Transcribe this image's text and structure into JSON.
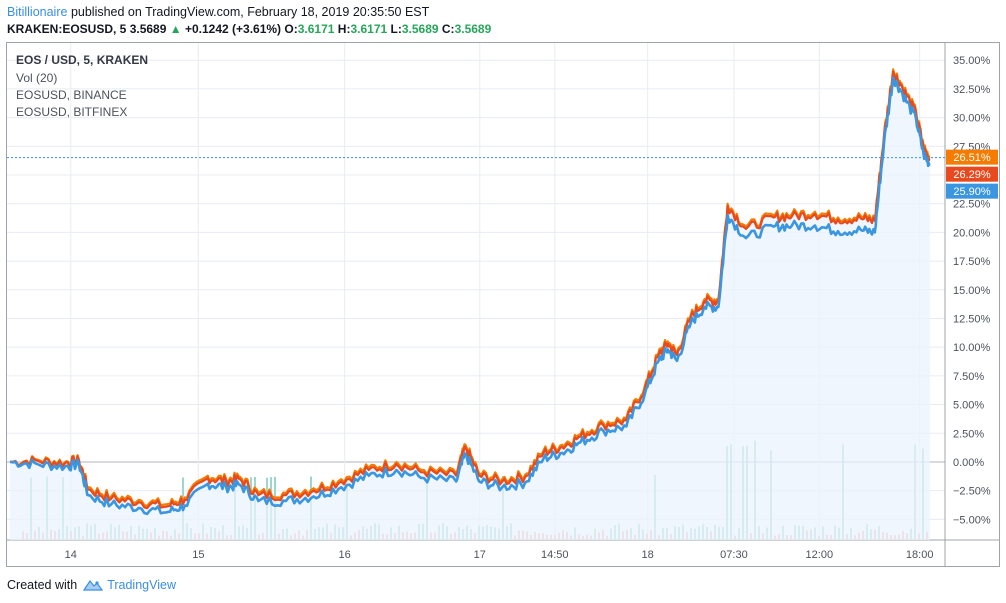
{
  "header": {
    "author": "Bitillionaire",
    "published": "published on TradingView.com, February 18, 2019 20:35:50 EST",
    "symbol": "KRAKEN:EOSUSD, 5",
    "last": "3.5689",
    "arrow": "▲",
    "change": "+0.1242 (+3.61%)",
    "o_label": "O:",
    "o_val": "3.6171",
    "h_label": "H:",
    "h_val": "3.6171",
    "l_label": "L:",
    "l_val": "3.5689",
    "c_label": "C:",
    "c_val": "3.5689"
  },
  "legend": {
    "main": "EOS / USD, 5, KRAKEN",
    "vol": "Vol (20)",
    "s2": "EOSUSD, BINANCE",
    "s3": "EOSUSD, BITFINEX"
  },
  "footer": {
    "created_with": "Created with",
    "brand": "TradingView"
  },
  "colors": {
    "kraken": "#f57c00",
    "binance": "#e8491e",
    "bitfinex": "#3a96e0",
    "area_fill": "#e9f3fc",
    "grid": "#e8ecf2",
    "vol_up": "#8ccfc5",
    "vol_down": "#f2a5a8",
    "zero_line": "#b2b5be",
    "last_line": "#3a96e0"
  },
  "chart_data": {
    "type": "line",
    "title": "EOS / USD, 5, KRAKEN",
    "y_unit": "%",
    "ylim": [
      -6.8,
      36.5
    ],
    "y_ticks": [
      -5,
      -2.5,
      0,
      2.5,
      5,
      7.5,
      10,
      12.5,
      15,
      17.5,
      20,
      22.5,
      25,
      27.5,
      30,
      32.5,
      35
    ],
    "y_tick_labels": [
      "−5.00%",
      "−2.50%",
      "0.00%",
      "2.50%",
      "5.00%",
      "7.50%",
      "10.00%",
      "12.50%",
      "15.00%",
      "17.50%",
      "20.00%",
      "22.50%",
      "25.00%",
      "27.50%",
      "30.00%",
      "32.50%",
      "35.00%"
    ],
    "x_ticks": [
      "14",
      "15",
      "16",
      "17",
      "14:50",
      "18",
      "07:30",
      "12:00",
      "18:00"
    ],
    "x_tick_pos": [
      0.068,
      0.204,
      0.36,
      0.504,
      0.584,
      0.683,
      0.775,
      0.866,
      0.973
    ],
    "grid": true,
    "legend_position": "top-left",
    "last_labels": [
      {
        "series": "KRAKEN",
        "text": "26.51%",
        "value": 26.51
      },
      {
        "series": "BINANCE",
        "text": "26.29%",
        "value": 26.29
      },
      {
        "series": "BITFINEX",
        "text": "25.90%",
        "value": 25.9
      }
    ],
    "x": [
      0,
      0.03,
      0.06,
      0.075,
      0.085,
      0.11,
      0.14,
      0.17,
      0.19,
      0.215,
      0.235,
      0.25,
      0.27,
      0.3,
      0.33,
      0.36,
      0.39,
      0.42,
      0.45,
      0.485,
      0.495,
      0.51,
      0.535,
      0.56,
      0.58,
      0.6,
      0.62,
      0.645,
      0.67,
      0.69,
      0.705,
      0.715,
      0.725,
      0.74,
      0.755,
      0.77,
      0.78,
      0.8,
      0.83,
      0.85,
      0.875,
      0.9,
      0.925,
      0.94,
      0.95,
      0.96,
      0.97,
      0.985,
      0.993,
      1.0
    ],
    "series": [
      {
        "name": "KRAKEN",
        "values": [
          0,
          0.2,
          0,
          0.2,
          -2.2,
          -3,
          -3.3,
          -3.7,
          -3.1,
          -1.2,
          -1.5,
          -1.3,
          -2.7,
          -2.7,
          -2.3,
          -1.5,
          -0.5,
          0,
          -0.7,
          -1,
          1.5,
          -1,
          -1.5,
          -1.1,
          1,
          1.5,
          2.4,
          3.4,
          3.8,
          6.6,
          9.5,
          10.5,
          9.5,
          12.8,
          14.2,
          14.2,
          22.5,
          20.5,
          21.5,
          21.6,
          21.8,
          21.3,
          21.4,
          21.2,
          28.5,
          34.2,
          32.8,
          30.5,
          27.5,
          26.51
        ]
      },
      {
        "name": "BINANCE",
        "values": [
          0,
          0.1,
          -0.1,
          0.1,
          -2.4,
          -3.2,
          -3.5,
          -3.9,
          -3.3,
          -1.4,
          -1.7,
          -1.5,
          -2.9,
          -2.9,
          -2.5,
          -1.7,
          -0.7,
          -0.2,
          -0.9,
          -1.2,
          1.3,
          -1.2,
          -1.7,
          -1.3,
          0.8,
          1.3,
          2.2,
          3.2,
          3.6,
          6.4,
          9.3,
          10.3,
          9.3,
          12.6,
          14,
          14,
          22.3,
          20.3,
          21.3,
          21.4,
          21.6,
          21.1,
          21.2,
          21,
          28.3,
          34,
          32.6,
          30.3,
          27.3,
          26.29
        ]
      },
      {
        "name": "BITFINEX",
        "values": [
          0,
          -0.2,
          -0.4,
          -0.2,
          -2.9,
          -3.7,
          -4,
          -4.4,
          -3.8,
          -1.9,
          -2.2,
          -2,
          -3.4,
          -3.4,
          -3,
          -2.2,
          -1.2,
          -0.7,
          -1.4,
          -1.7,
          0.7,
          -1.7,
          -2.2,
          -1.8,
          0.3,
          0.8,
          1.7,
          2.7,
          3.1,
          5.9,
          8.8,
          9.8,
          8.8,
          12.1,
          13.5,
          13.5,
          21.5,
          19.5,
          20.5,
          20.6,
          20.6,
          20.1,
          20.2,
          20,
          27.8,
          33.5,
          32.1,
          29.8,
          26.8,
          25.9
        ]
      }
    ]
  }
}
